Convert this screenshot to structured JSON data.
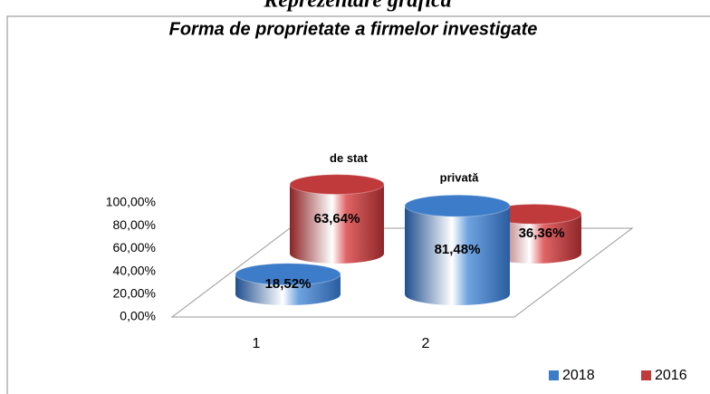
{
  "heading": "Reprezentare grafică",
  "chart_data": {
    "type": "cylinder",
    "title": "Forma de proprietate a firmelor investigate",
    "categories": [
      "1",
      "2"
    ],
    "series": [
      {
        "name": "2018",
        "color": "#3d7cc9",
        "values": [
          18.52,
          81.48
        ],
        "value_labels": [
          "18,52%",
          "81,48%"
        ]
      },
      {
        "name": "2016",
        "color": "#c0393b",
        "values": [
          63.64,
          36.36
        ],
        "value_labels": [
          "63,64%",
          "36,36%"
        ]
      }
    ],
    "annotations": [
      "de stat",
      "privată"
    ],
    "ylim": [
      0,
      100
    ],
    "yticks": [
      {
        "value": 0,
        "label": "0,00%"
      },
      {
        "value": 20,
        "label": "20,00%"
      },
      {
        "value": 40,
        "label": "40,00%"
      },
      {
        "value": 60,
        "label": "60,00%"
      },
      {
        "value": 80,
        "label": "80,00%"
      },
      {
        "value": 100,
        "label": "100,00%"
      }
    ],
    "legend": "bottom-right"
  }
}
